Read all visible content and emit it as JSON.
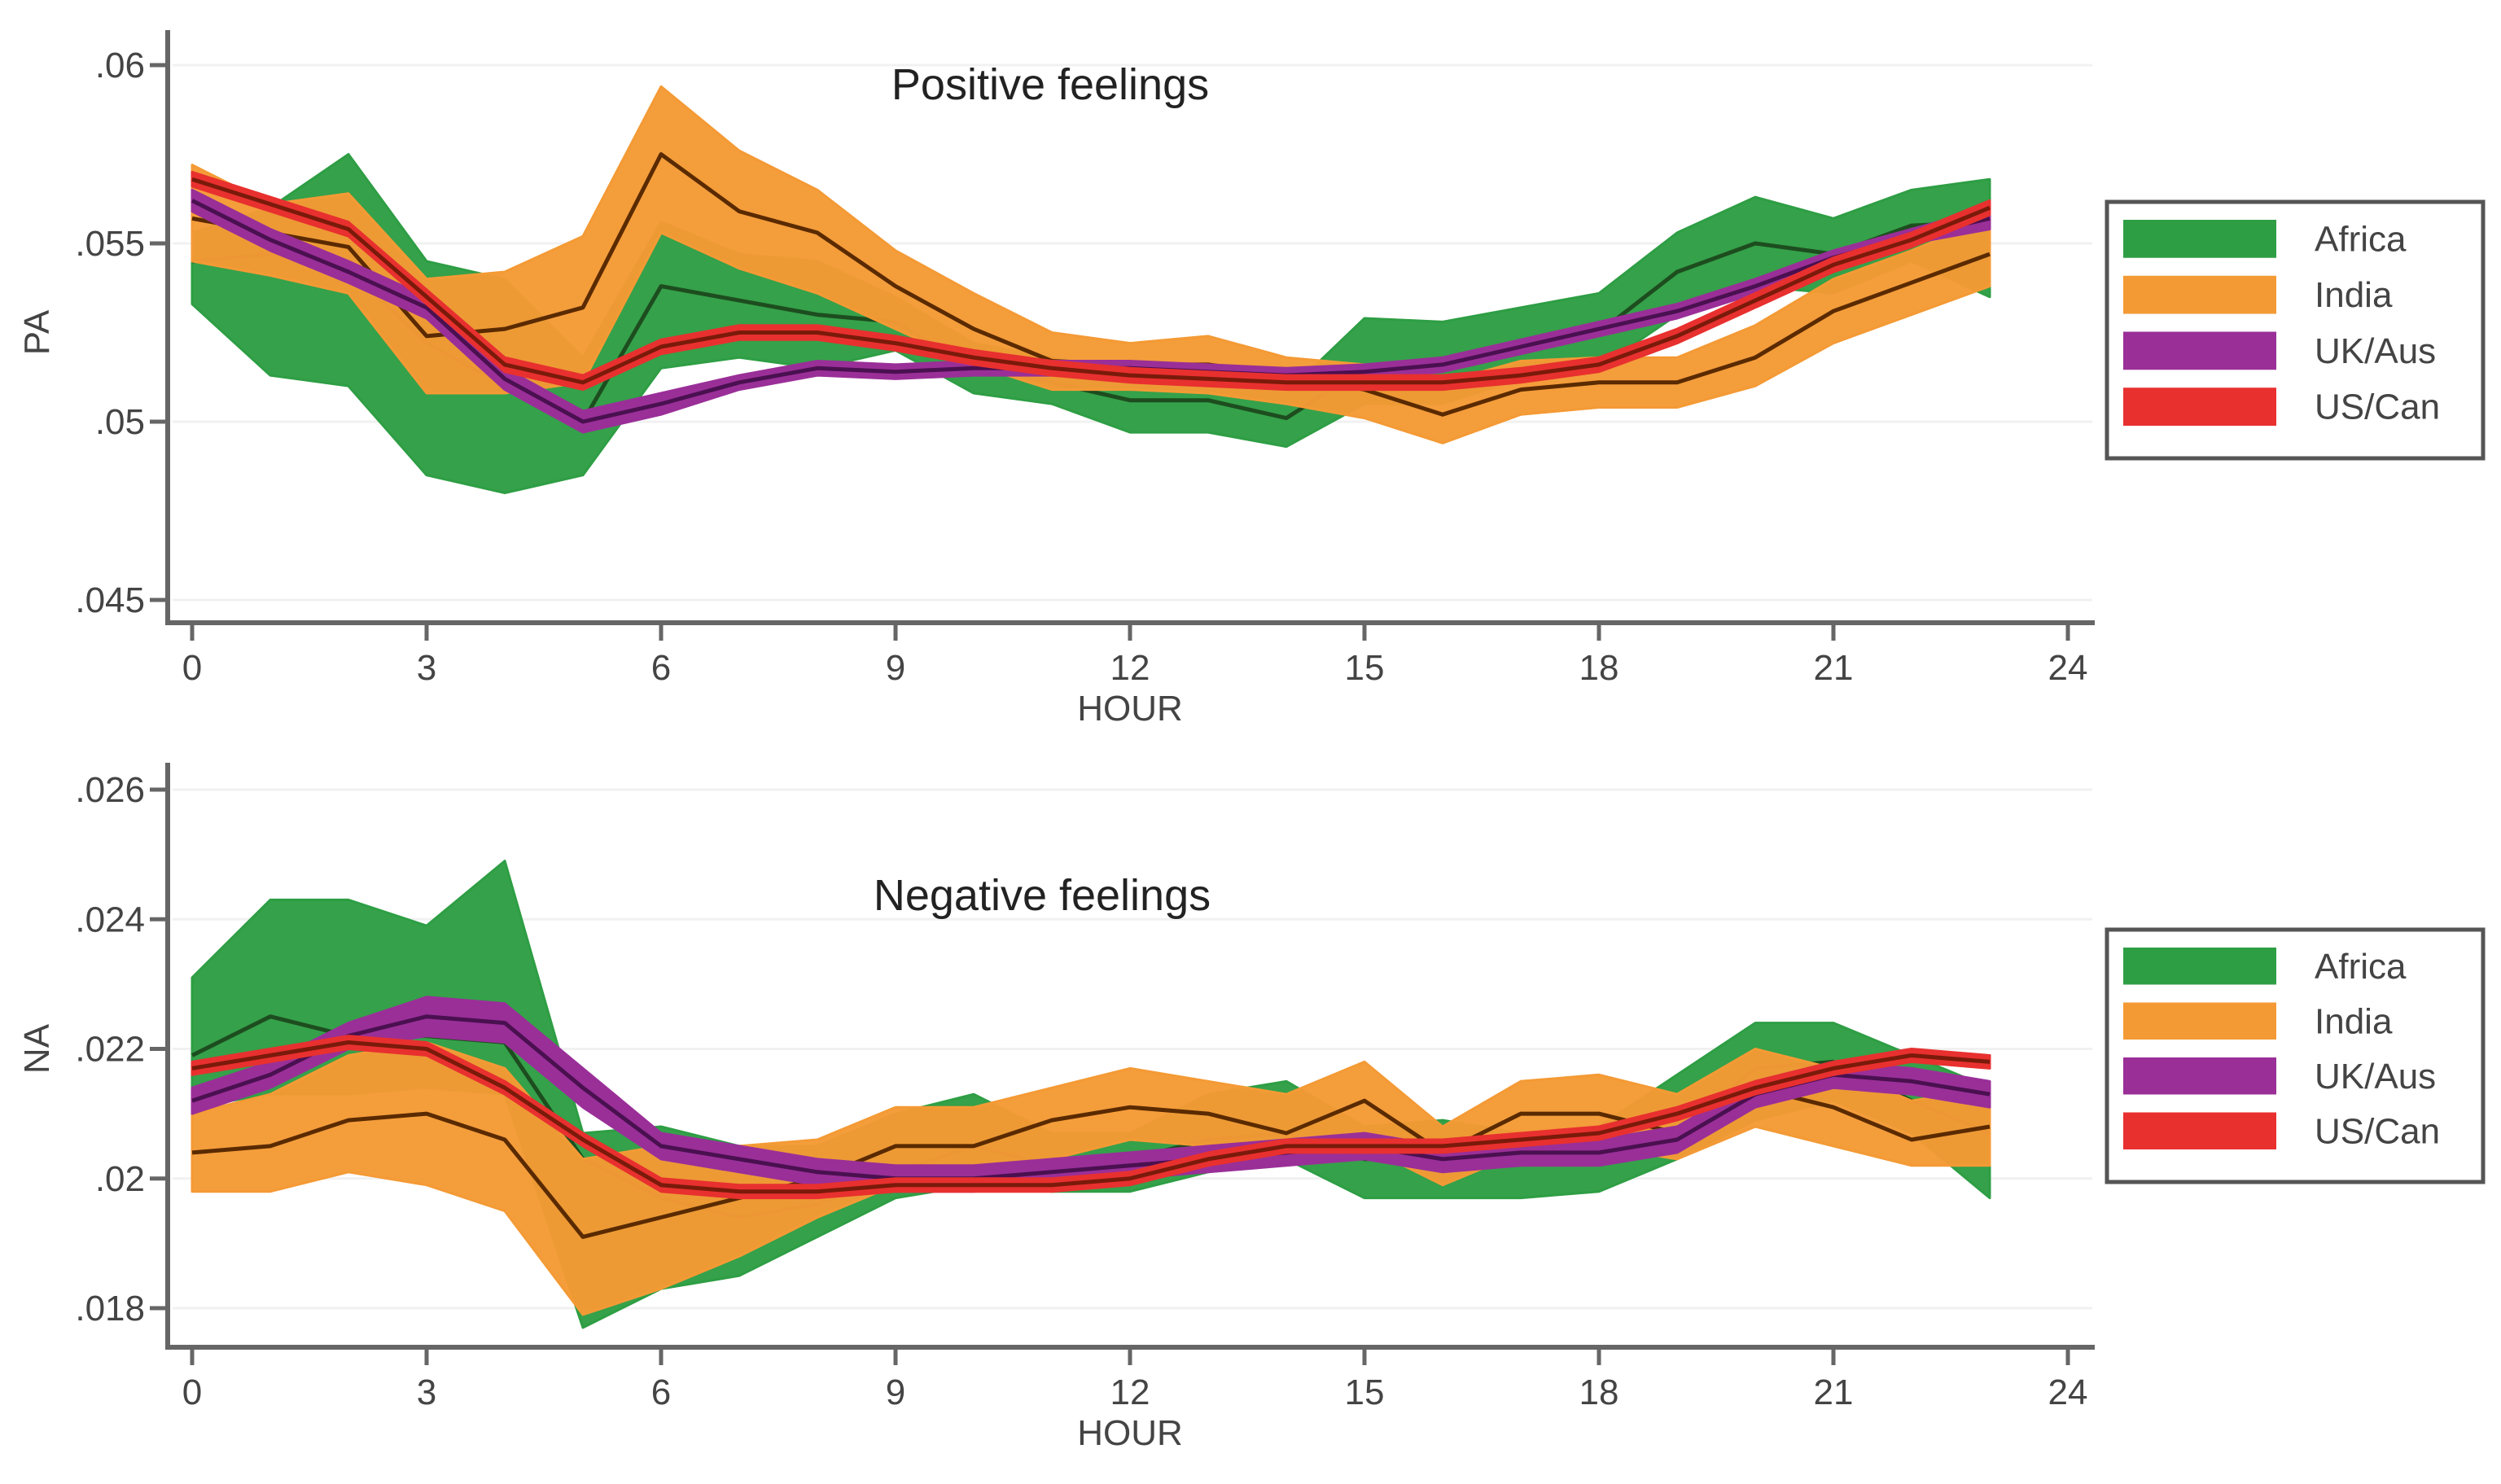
{
  "chart_data": [
    {
      "type": "area",
      "title": "Positive feelings",
      "xlabel": "HOUR",
      "ylabel": "PA",
      "xlim": [
        0,
        24
      ],
      "ylim": [
        0.045,
        0.06
      ],
      "xticks": [
        0,
        3,
        6,
        9,
        12,
        15,
        18,
        21,
        24
      ],
      "xtick_labels": [
        "0",
        "3",
        "6",
        "9",
        "12",
        "15",
        "18",
        "21",
        "24"
      ],
      "yticks": [
        0.045,
        0.05,
        0.055,
        0.06
      ],
      "ytick_labels": [
        ".045",
        ".05",
        ".055",
        ".06"
      ],
      "grid": true,
      "legend_position": "right",
      "x": [
        0,
        1,
        2,
        3,
        4,
        5,
        6,
        7,
        8,
        9,
        10,
        11,
        12,
        13,
        14,
        15,
        16,
        17,
        18,
        19,
        20,
        21,
        22,
        23
      ],
      "series": [
        {
          "name": "Africa",
          "color": "#2e9e44",
          "line_color": "#1d4d1f",
          "center": [
            0.0545,
            0.0547,
            0.0543,
            0.0522,
            0.051,
            0.05,
            0.0538,
            0.0534,
            0.053,
            0.0528,
            0.0515,
            0.0511,
            0.0506,
            0.0506,
            0.0501,
            0.0515,
            0.0515,
            0.052,
            0.0525,
            0.0542,
            0.055,
            0.0547,
            0.0555,
            0.0556
          ],
          "upper": [
            0.0553,
            0.056,
            0.0575,
            0.0545,
            0.054,
            0.0518,
            0.0556,
            0.0547,
            0.0545,
            0.0535,
            0.0522,
            0.0518,
            0.0512,
            0.0513,
            0.0508,
            0.0529,
            0.0528,
            0.0532,
            0.0536,
            0.0553,
            0.0563,
            0.0557,
            0.0565,
            0.0568
          ],
          "lower": [
            0.0533,
            0.0513,
            0.051,
            0.0485,
            0.048,
            0.0485,
            0.0515,
            0.0518,
            0.0515,
            0.052,
            0.0508,
            0.0505,
            0.0497,
            0.0497,
            0.0493,
            0.0505,
            0.0505,
            0.0512,
            0.0515,
            0.053,
            0.0538,
            0.0536,
            0.0545,
            0.0535
          ]
        },
        {
          "name": "India",
          "color": "#f49a35",
          "line_color": "#5a2a00",
          "center": [
            0.0557,
            0.0553,
            0.0549,
            0.0524,
            0.0526,
            0.0532,
            0.0575,
            0.0559,
            0.0553,
            0.0538,
            0.0526,
            0.0517,
            0.0516,
            0.0516,
            0.0513,
            0.0509,
            0.0502,
            0.0509,
            0.0511,
            0.0511,
            0.0518,
            0.0531,
            0.0539,
            0.0547
          ],
          "upper": [
            0.0572,
            0.0561,
            0.0564,
            0.054,
            0.0542,
            0.0552,
            0.0594,
            0.0576,
            0.0565,
            0.0548,
            0.0536,
            0.0525,
            0.0522,
            0.0524,
            0.0518,
            0.0516,
            0.0511,
            0.0517,
            0.0518,
            0.0518,
            0.0527,
            0.054,
            0.0548,
            0.0557
          ],
          "lower": [
            0.0545,
            0.0541,
            0.0536,
            0.0508,
            0.0508,
            0.0511,
            0.0553,
            0.0543,
            0.0536,
            0.0526,
            0.0516,
            0.0509,
            0.0509,
            0.0508,
            0.0505,
            0.0501,
            0.0494,
            0.0502,
            0.0504,
            0.0504,
            0.051,
            0.0522,
            0.053,
            0.0538
          ]
        },
        {
          "name": "UK/Aus",
          "color": "#9a2f98",
          "line_color": "#4a1050",
          "center": [
            0.0562,
            0.0551,
            0.0542,
            0.0532,
            0.0512,
            0.05,
            0.0505,
            0.0511,
            0.0515,
            0.0514,
            0.0515,
            0.0515,
            0.0515,
            0.0514,
            0.0513,
            0.0514,
            0.0516,
            0.0521,
            0.0526,
            0.0531,
            0.0538,
            0.0546,
            0.0552,
            0.0557
          ],
          "upper": [
            0.0565,
            0.0554,
            0.0545,
            0.0535,
            0.0515,
            0.0503,
            0.0508,
            0.0513,
            0.0517,
            0.0516,
            0.0517,
            0.0517,
            0.0517,
            0.0516,
            0.0515,
            0.0516,
            0.0518,
            0.0523,
            0.0528,
            0.0533,
            0.054,
            0.0548,
            0.0554,
            0.056
          ],
          "lower": [
            0.0559,
            0.0548,
            0.0539,
            0.0529,
            0.0509,
            0.0497,
            0.0502,
            0.0509,
            0.0513,
            0.0512,
            0.0513,
            0.0513,
            0.0513,
            0.0512,
            0.0511,
            0.0512,
            0.0514,
            0.0519,
            0.0524,
            0.0529,
            0.0536,
            0.0544,
            0.055,
            0.0554
          ]
        },
        {
          "name": "US/Can",
          "color": "#e8302f",
          "line_color": "#7a1a0a",
          "center": [
            0.0568,
            0.0561,
            0.0554,
            0.0535,
            0.0516,
            0.0511,
            0.0521,
            0.0525,
            0.0525,
            0.0522,
            0.0518,
            0.0515,
            0.0513,
            0.0512,
            0.0511,
            0.0511,
            0.0511,
            0.0513,
            0.0516,
            0.0524,
            0.0534,
            0.0544,
            0.0551,
            0.056
          ],
          "upper": [
            0.057,
            0.0563,
            0.0556,
            0.0537,
            0.0518,
            0.0513,
            0.0523,
            0.0527,
            0.0527,
            0.0524,
            0.052,
            0.0517,
            0.0515,
            0.0514,
            0.0513,
            0.0513,
            0.0513,
            0.0515,
            0.0518,
            0.0526,
            0.0536,
            0.0546,
            0.0553,
            0.0562
          ],
          "lower": [
            0.0566,
            0.0559,
            0.0552,
            0.0533,
            0.0514,
            0.0509,
            0.0519,
            0.0523,
            0.0523,
            0.052,
            0.0516,
            0.0513,
            0.0511,
            0.051,
            0.0509,
            0.0509,
            0.0509,
            0.0511,
            0.0514,
            0.0522,
            0.0532,
            0.0542,
            0.0549,
            0.0558
          ]
        }
      ]
    },
    {
      "type": "area",
      "title": "Negative feelings",
      "xlabel": "HOUR",
      "ylabel": "NA",
      "xlim": [
        0,
        24
      ],
      "ylim": [
        0.018,
        0.026
      ],
      "xticks": [
        0,
        3,
        6,
        9,
        12,
        15,
        18,
        21,
        24
      ],
      "xtick_labels": [
        "0",
        "3",
        "6",
        "9",
        "12",
        "15",
        "18",
        "21",
        "24"
      ],
      "yticks": [
        0.018,
        0.02,
        0.022,
        0.024,
        0.026
      ],
      "ytick_labels": [
        ".018",
        ".02",
        ".022",
        ".024",
        ".026"
      ],
      "grid": true,
      "legend_position": "right",
      "x": [
        0,
        1,
        2,
        3,
        4,
        5,
        6,
        7,
        8,
        9,
        10,
        11,
        12,
        13,
        14,
        15,
        16,
        17,
        18,
        19,
        20,
        21,
        22,
        23
      ],
      "series": [
        {
          "name": "Africa",
          "color": "#2e9e44",
          "line_color": "#1d4d1f",
          "center": [
            0.0219,
            0.0225,
            0.0222,
            0.0222,
            0.0221,
            0.0203,
            0.0197,
            0.0194,
            0.0196,
            0.0201,
            0.0205,
            0.0202,
            0.0203,
            0.0206,
            0.0207,
            0.0203,
            0.0203,
            0.0203,
            0.0204,
            0.0207,
            0.0217,
            0.0218,
            0.0212,
            0.0207
          ],
          "upper": [
            0.0231,
            0.0243,
            0.0243,
            0.0239,
            0.0249,
            0.0207,
            0.0208,
            0.0205,
            0.0205,
            0.021,
            0.0213,
            0.0207,
            0.0207,
            0.0213,
            0.0215,
            0.0208,
            0.0209,
            0.0207,
            0.0208,
            0.0216,
            0.0224,
            0.0224,
            0.0219,
            0.0214
          ],
          "lower": [
            0.0211,
            0.0213,
            0.0213,
            0.0214,
            0.0213,
            0.0177,
            0.0183,
            0.0185,
            0.0191,
            0.0197,
            0.0199,
            0.0198,
            0.0198,
            0.0201,
            0.0203,
            0.0197,
            0.0197,
            0.0197,
            0.0198,
            0.0203,
            0.0209,
            0.0212,
            0.0207,
            0.0197
          ]
        },
        {
          "name": "India",
          "color": "#f49a35",
          "line_color": "#5a2a00",
          "center": [
            0.0204,
            0.0205,
            0.0209,
            0.021,
            0.0206,
            0.0191,
            0.0194,
            0.0197,
            0.02,
            0.0205,
            0.0205,
            0.0209,
            0.0211,
            0.021,
            0.0207,
            0.0212,
            0.0204,
            0.021,
            0.021,
            0.0207,
            0.0214,
            0.0211,
            0.0206,
            0.0208
          ],
          "upper": [
            0.021,
            0.0213,
            0.0219,
            0.0221,
            0.0217,
            0.0203,
            0.0205,
            0.0205,
            0.0206,
            0.0211,
            0.0211,
            0.0214,
            0.0217,
            0.0215,
            0.0213,
            0.0218,
            0.0208,
            0.0215,
            0.0216,
            0.0213,
            0.022,
            0.0217,
            0.0212,
            0.0214
          ],
          "lower": [
            0.0198,
            0.0198,
            0.0201,
            0.0199,
            0.0195,
            0.0179,
            0.0183,
            0.0188,
            0.0194,
            0.0199,
            0.02,
            0.0203,
            0.0206,
            0.0205,
            0.0202,
            0.0205,
            0.0199,
            0.0204,
            0.0205,
            0.0203,
            0.0208,
            0.0205,
            0.0202,
            0.0202
          ]
        },
        {
          "name": "UK/Aus",
          "color": "#9a2f98",
          "line_color": "#4a1050",
          "center": [
            0.0212,
            0.0216,
            0.0222,
            0.0225,
            0.0224,
            0.0214,
            0.0205,
            0.0203,
            0.0201,
            0.02,
            0.02,
            0.0201,
            0.0202,
            0.0203,
            0.0204,
            0.0205,
            0.0203,
            0.0204,
            0.0204,
            0.0206,
            0.0213,
            0.0216,
            0.0215,
            0.0213
          ],
          "upper": [
            0.0214,
            0.0218,
            0.0224,
            0.0228,
            0.0227,
            0.0217,
            0.0207,
            0.0205,
            0.0203,
            0.0202,
            0.0202,
            0.0203,
            0.0204,
            0.0205,
            0.0206,
            0.0207,
            0.0205,
            0.0206,
            0.0206,
            0.0208,
            0.0215,
            0.0218,
            0.0217,
            0.0215
          ],
          "lower": [
            0.021,
            0.0214,
            0.022,
            0.0222,
            0.0221,
            0.0211,
            0.0203,
            0.0201,
            0.0199,
            0.0198,
            0.0198,
            0.0199,
            0.02,
            0.0201,
            0.0202,
            0.0203,
            0.0201,
            0.0202,
            0.0202,
            0.0204,
            0.0211,
            0.0214,
            0.0213,
            0.0211
          ]
        },
        {
          "name": "US/Can",
          "color": "#e8302f",
          "line_color": "#7a1a0a",
          "center": [
            0.0217,
            0.0219,
            0.0221,
            0.022,
            0.0214,
            0.0206,
            0.0199,
            0.0198,
            0.0198,
            0.0199,
            0.0199,
            0.0199,
            0.02,
            0.0203,
            0.0205,
            0.0205,
            0.0205,
            0.0206,
            0.0207,
            0.021,
            0.0214,
            0.0217,
            0.0219,
            0.0218
          ],
          "upper": [
            0.0218,
            0.022,
            0.0222,
            0.0221,
            0.0215,
            0.0207,
            0.02,
            0.0199,
            0.0199,
            0.02,
            0.02,
            0.02,
            0.0201,
            0.0204,
            0.0206,
            0.0206,
            0.0206,
            0.0207,
            0.0208,
            0.0211,
            0.0215,
            0.0218,
            0.022,
            0.0219
          ],
          "lower": [
            0.0216,
            0.0218,
            0.022,
            0.0219,
            0.0213,
            0.0205,
            0.0198,
            0.0197,
            0.0197,
            0.0198,
            0.0198,
            0.0198,
            0.0199,
            0.0202,
            0.0204,
            0.0204,
            0.0204,
            0.0205,
            0.0206,
            0.0209,
            0.0213,
            0.0216,
            0.0218,
            0.0217
          ]
        }
      ]
    }
  ]
}
